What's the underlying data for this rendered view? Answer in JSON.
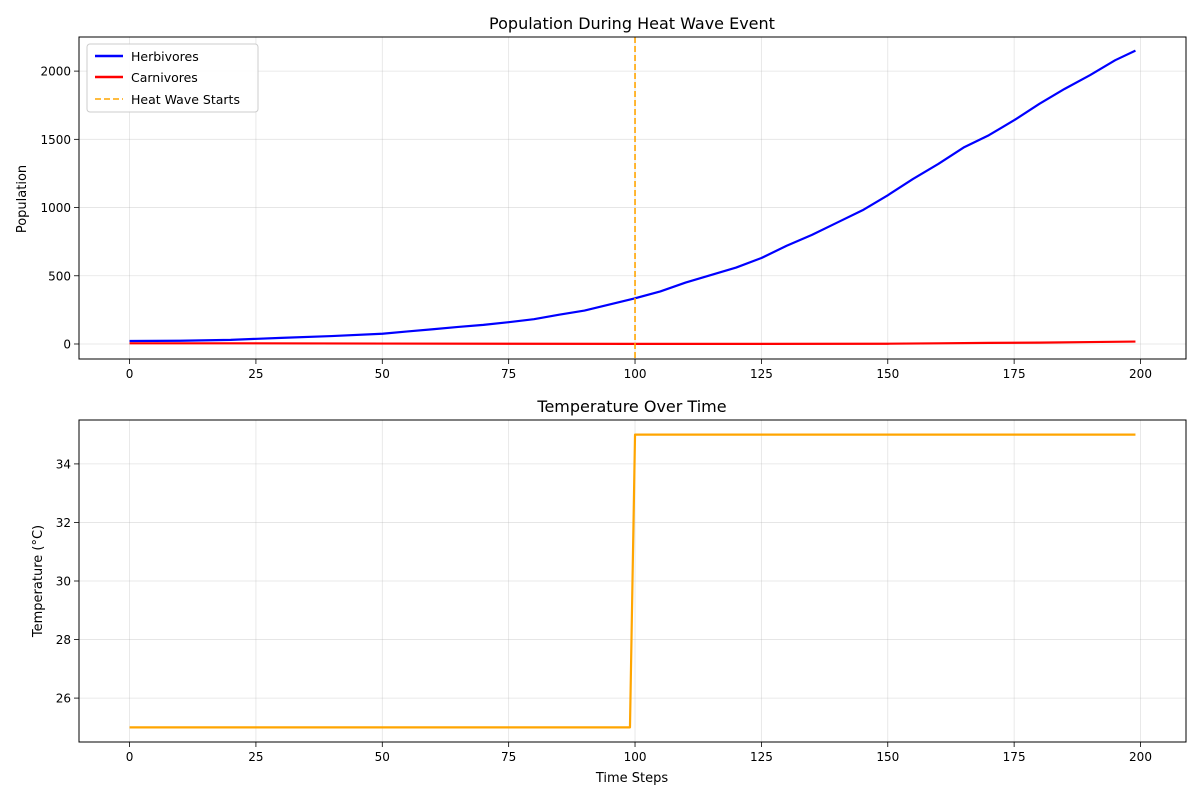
{
  "chart_data": [
    {
      "type": "line",
      "title": "Population During Heat Wave Event",
      "xlabel": "",
      "ylabel": "Population",
      "xlim": [
        -10,
        209
      ],
      "ylim": [
        -110,
        2250
      ],
      "xticks": [
        0,
        25,
        50,
        75,
        100,
        125,
        150,
        175,
        200
      ],
      "yticks": [
        0,
        500,
        1000,
        1500,
        2000
      ],
      "grid": true,
      "legend_position": "top-left",
      "series": [
        {
          "name": "Herbivores",
          "color": "#0000ff",
          "style": "solid",
          "x": [
            0,
            10,
            20,
            30,
            40,
            50,
            55,
            60,
            65,
            70,
            75,
            80,
            85,
            90,
            95,
            100,
            105,
            110,
            115,
            120,
            125,
            130,
            135,
            140,
            145,
            150,
            155,
            160,
            165,
            170,
            175,
            180,
            185,
            190,
            195,
            199
          ],
          "y": [
            22,
            24,
            30,
            45,
            58,
            75,
            92,
            108,
            125,
            140,
            160,
            182,
            215,
            245,
            290,
            335,
            385,
            450,
            505,
            560,
            630,
            720,
            800,
            890,
            980,
            1090,
            1210,
            1320,
            1440,
            1530,
            1640,
            1760,
            1870,
            1970,
            2080,
            2150
          ]
        },
        {
          "name": "Carnivores",
          "color": "#ff0000",
          "style": "solid",
          "x": [
            0,
            25,
            50,
            75,
            100,
            125,
            150,
            160,
            170,
            180,
            190,
            199
          ],
          "y": [
            5,
            5,
            3,
            2,
            1,
            1,
            2,
            5,
            8,
            10,
            14,
            18
          ]
        }
      ],
      "annotations": [
        {
          "label": "Heat Wave Starts",
          "type": "vline",
          "x": 100,
          "color": "#ffa500",
          "style": "dashed"
        }
      ]
    },
    {
      "type": "line",
      "title": "Temperature Over Time",
      "xlabel": "Time Steps",
      "ylabel": "Temperature (°C)",
      "xlim": [
        -10,
        209
      ],
      "ylim": [
        24.5,
        35.5
      ],
      "xticks": [
        0,
        25,
        50,
        75,
        100,
        125,
        150,
        175,
        200
      ],
      "yticks": [
        26,
        28,
        30,
        32,
        34
      ],
      "grid": true,
      "series": [
        {
          "color": "#ffa500",
          "style": "solid",
          "x": [
            0,
            99,
            100,
            199
          ],
          "y": [
            25,
            25,
            35,
            35
          ]
        }
      ]
    }
  ]
}
